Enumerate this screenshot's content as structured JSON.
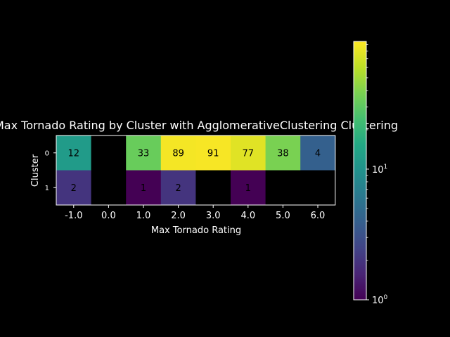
{
  "chart_data": {
    "type": "heatmap",
    "title": "Max Tornado Rating by Cluster with AgglomerativeClustering Clustering",
    "xlabel": "Max Tornado Rating",
    "ylabel": "Cluster",
    "x_categories": [
      "-1.0",
      "0.0",
      "1.0",
      "2.0",
      "3.0",
      "4.0",
      "5.0",
      "6.0"
    ],
    "y_categories": [
      "0",
      "1"
    ],
    "values": [
      [
        12,
        null,
        33,
        89,
        91,
        77,
        38,
        4
      ],
      [
        2,
        null,
        1,
        2,
        null,
        1,
        null,
        null
      ]
    ],
    "color_scale": "log",
    "colormap": "viridis",
    "colorbar_range": [
      1,
      95
    ],
    "colorbar_ticks": [
      {
        "value": 1,
        "base": "10",
        "exp": "0"
      },
      {
        "value": 10,
        "base": "10",
        "exp": "1"
      }
    ],
    "missing_color": "#000000"
  },
  "colors": {
    "background": "#000000",
    "text": "#ffffff",
    "cell_label": "#000000"
  }
}
